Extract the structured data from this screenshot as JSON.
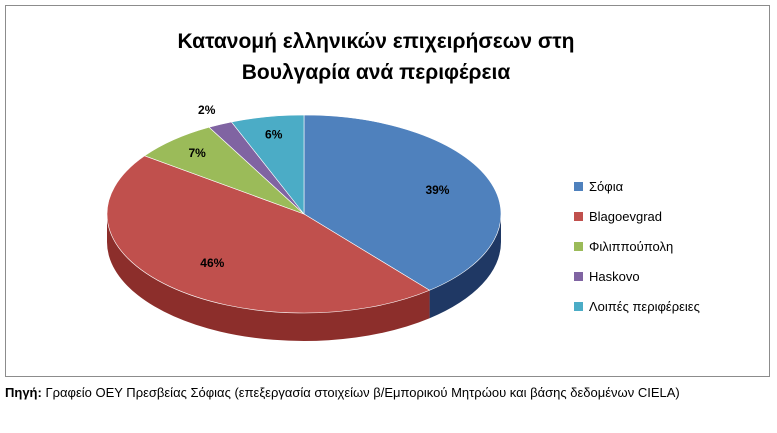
{
  "chart_data": {
    "type": "pie",
    "title_lines": [
      "Κατανομή ελληνικών επιχειρήσεων στη",
      "Βουλγαρία ανά περιφέρεια"
    ],
    "categories": [
      "Σόφια",
      "Blagoevgrad",
      "Φιλιππούπολη",
      "Haskovo",
      "Λοιπές περιφέρειες"
    ],
    "values": [
      39,
      46,
      7,
      2,
      6
    ],
    "data_labels": [
      "39%",
      "46%",
      "7%",
      "2%",
      "6%"
    ],
    "colors": [
      "#4f81bd",
      "#c0504d",
      "#9bbb59",
      "#8064a2",
      "#4bacc6"
    ],
    "side_colors": [
      "#1f3864",
      "#8c2e2b",
      "#6f8a3a",
      "#5a457a",
      "#2f7f95"
    ],
    "legend_position": "right",
    "style": "3d"
  },
  "source": {
    "label": "Πηγή:",
    "text": " Γραφείο ΟΕΥ Πρεσβείας Σόφιας (επεξεργασία στοιχείων β/Εμπορικού Μητρώου και βάσης δεδομένων CIELA)"
  }
}
